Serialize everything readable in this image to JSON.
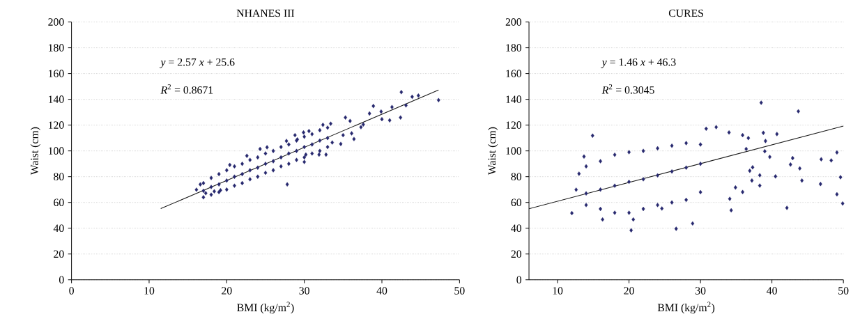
{
  "chart_data": [
    {
      "type": "scatter",
      "title": "NHANES III",
      "xlabel": "BMI (kg/m$^{2}$)",
      "ylabel": "Waist (cm)",
      "annotations": [
        "*y* = 2.57 *x* + 25.6",
        "*R*$^{2}$ = 0.8671"
      ],
      "xlim": [
        0,
        50
      ],
      "ylim": [
        0,
        200
      ],
      "xticks": [
        0,
        10,
        20,
        30,
        40,
        50
      ],
      "yticks": [
        0,
        20,
        40,
        60,
        80,
        100,
        120,
        140,
        160,
        180,
        200
      ],
      "grid": "y",
      "marker": "diamond",
      "series": [
        {
          "color": "#27286e",
          "x": [
            42.5,
            43.9,
            44.7,
            47.3,
            43.1,
            38.9,
            41.3,
            42.4,
            39.9,
            41.0,
            40.0,
            38.4,
            35.3,
            35.9,
            37.3,
            37.6,
            36.1,
            36.4,
            34.7,
            35.0,
            33.4,
            32.4,
            30.6,
            29.9,
            28.8,
            27.8,
            30.2,
            30.0,
            31.9,
            32.8,
            25.2,
            16.1,
            16.6,
            17.3,
            18.4,
            19.2,
            20.4,
            22.6,
            24.3,
            27.7,
            29.1,
            33.6,
            17,
            17,
            17,
            18,
            18,
            18,
            19,
            19,
            19,
            20,
            20,
            20,
            21,
            21,
            21,
            22,
            22,
            22,
            23,
            23,
            23,
            24,
            24,
            24,
            25,
            25,
            25,
            26,
            26,
            26,
            27,
            27,
            27,
            28,
            28,
            28,
            29,
            29,
            29,
            30,
            30,
            30,
            31,
            31,
            31,
            32,
            32,
            32,
            33,
            33,
            33
          ],
          "values": [
            145.6,
            142,
            142.9,
            139.4,
            135.3,
            134.8,
            134,
            125.9,
            130.5,
            123.7,
            124.6,
            129,
            125.9,
            123.2,
            118.4,
            120.5,
            113.6,
            109.2,
            105.4,
            112.2,
            121.1,
            120.2,
            115.4,
            114.3,
            112.2,
            74.0,
            97.1,
            91.4,
            97.1,
            97.1,
            102.8,
            69.9,
            74.0,
            67.2,
            68.6,
            69.5,
            89.1,
            96.2,
            101.5,
            107.7,
            108.9,
            106.5,
            75,
            69,
            64,
            79,
            72,
            66,
            82,
            74,
            68,
            85,
            77,
            70,
            88,
            80,
            73,
            90,
            82,
            75,
            93,
            85,
            78,
            95,
            87,
            80,
            98,
            90,
            83,
            100,
            92,
            85,
            103,
            95,
            88,
            105,
            98,
            90,
            108,
            100,
            93,
            111,
            103,
            95,
            113,
            105,
            98,
            116,
            108,
            100,
            118,
            110,
            103
          ]
        },
        {
          "type": "line",
          "marker": "none",
          "color": "#1a1a1a",
          "x": [
            11.5,
            47.3
          ],
          "values": [
            55.2,
            147.2
          ]
        }
      ]
    },
    {
      "type": "scatter",
      "title": "CURES",
      "xlabel": "BMI (kg/m$^{2}$)",
      "ylabel": "Waist (cm)",
      "annotations": [
        "*y* = 1.46 *x* + 46.3",
        "*R*$^{2}$ = 0.3045"
      ],
      "xlim": [
        6,
        50
      ],
      "ylim": [
        0,
        200
      ],
      "xticks": [
        10,
        20,
        30,
        40,
        50
      ],
      "yticks": [
        0,
        20,
        40,
        60,
        80,
        100,
        120,
        140,
        160,
        180,
        200
      ],
      "grid": "y",
      "marker": "diamond",
      "series": [
        {
          "color": "#27286e",
          "x": [
            38.5,
            43.7,
            14.9,
            38.8,
            40.7,
            39.1,
            39.0,
            39.7,
            42.9,
            42.6,
            43.9,
            40.5,
            44.2,
            38.3,
            38.3,
            42.1,
            46.9,
            48.3,
            49.1,
            46.8,
            49.6,
            49.1,
            49.9,
            36.9,
            37.3,
            37.2,
            20.3,
            26.6,
            28.9,
            34.3,
            12.0,
            13.7,
            13.0,
            16.3,
            32.2,
            30.8,
            34.0,
            35.9,
            36.7,
            36.4,
            34.9,
            35.9,
            34.1,
            24.6,
            20.6,
            12.6,
            14,
            14,
            14,
            16,
            16,
            16,
            18,
            18,
            18,
            20,
            20,
            20,
            22,
            22,
            22,
            24,
            24,
            24,
            26,
            26,
            26,
            28,
            28,
            28,
            30,
            30,
            30
          ],
          "values": [
            137.4,
            130.7,
            111.8,
            114,
            113.1,
            107.7,
            99.7,
            95.3,
            94.4,
            89.4,
            86.4,
            80.2,
            77.0,
            81.1,
            73.1,
            55.8,
            93.5,
            92.6,
            98.8,
            74.3,
            79.6,
            66.3,
            59.2,
            84.6,
            87.3,
            77.0,
            38.4,
            39.6,
            43.7,
            53.9,
            51.7,
            95.6,
            82.3,
            46.8,
            118.4,
            117.2,
            114.3,
            112.2,
            110.0,
            101.5,
            71.6,
            68.1,
            62.8,
            55.3,
            46.8,
            69.9,
            88,
            67,
            58,
            92,
            70,
            55,
            97,
            73,
            52,
            99,
            76,
            52,
            100,
            78,
            55,
            102,
            81,
            58,
            104,
            84,
            60,
            106,
            87,
            62,
            105,
            90,
            68
          ]
        },
        {
          "type": "line",
          "marker": "none",
          "color": "#1a1a1a",
          "x": [
            6,
            50
          ],
          "values": [
            55.1,
            119.3
          ]
        }
      ]
    }
  ]
}
